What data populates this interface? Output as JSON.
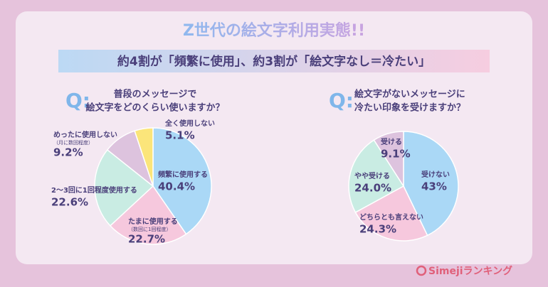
{
  "title": "Z世代の絵文字利用実態!!",
  "subtitle": "約4割が「頻繁に使用」、約3割が「絵文字なし＝冷たい」",
  "brand": "Simejiランキング",
  "chart_data": [
    {
      "type": "pie",
      "q_label": "Q:",
      "title": [
        "普段のメッセージで",
        "絵文字をどのくらい使いますか？"
      ],
      "categories": [
        "頻繁に使用する",
        "たまに使用する",
        "2〜3回に1回程度使用する",
        "めったに使用しない",
        "全く使用しない"
      ],
      "category_notes": [
        null,
        "（数回に1回程度）",
        null,
        "（月に数回程度）",
        null
      ],
      "values": [
        40.4,
        22.7,
        22.6,
        9.2,
        5.1
      ],
      "value_labels": [
        "40.4%",
        "22.7%",
        "22.6%",
        "9.2%",
        "5.1%"
      ],
      "colors": [
        "#aad8f6",
        "#f6c8dd",
        "#c9ece3",
        "#ddc3de",
        "#fbe57a"
      ]
    },
    {
      "type": "pie",
      "q_label": "Q:",
      "title": [
        "絵文字がないメッセージに",
        "冷たい印象を受けますか？"
      ],
      "categories": [
        "受けない",
        "どちらとも言えない",
        "やや受ける",
        "受ける"
      ],
      "category_notes": [
        null,
        null,
        null,
        null
      ],
      "values": [
        43,
        24.3,
        24.0,
        9.1
      ],
      "value_labels": [
        "43%",
        "24.3%",
        "24.0%",
        "9.1%"
      ],
      "colors": [
        "#aad8f6",
        "#f6c8dd",
        "#c9ece3",
        "#ddc3de"
      ]
    }
  ]
}
